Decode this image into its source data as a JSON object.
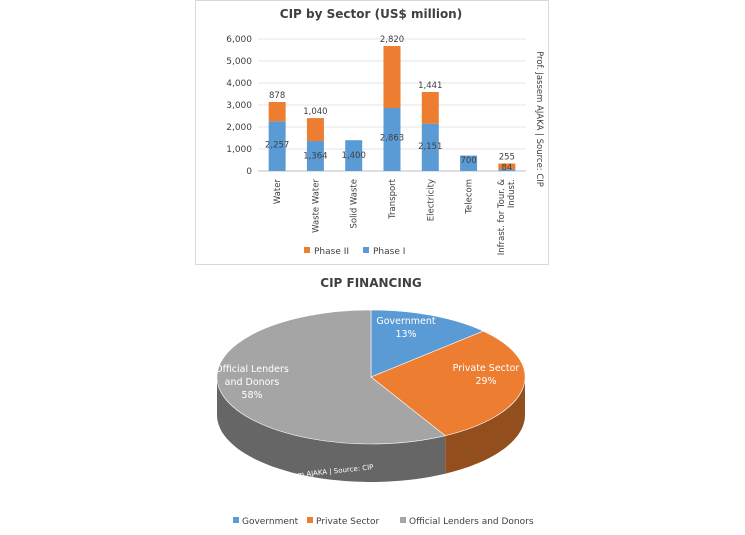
{
  "chart_data": [
    {
      "type": "bar",
      "stacked": true,
      "title": "CIP by Sector (US$ million)",
      "categories": [
        "Water",
        "Waste Water",
        "Solid Waste",
        "Transport",
        "Electricity",
        "Telecom",
        "Infrast. for Tour. & Indust."
      ],
      "series": [
        {
          "name": "Phase I",
          "color": "#5b9bd5",
          "values": [
            2257,
            1364,
            1400,
            2863,
            2151,
            700,
            84
          ],
          "labels": [
            "2,257",
            "1,364",
            "1,400",
            "2,863",
            "2,151",
            "700",
            "84"
          ]
        },
        {
          "name": "Phase II",
          "color": "#ed7d31",
          "values": [
            878,
            1040,
            0,
            2820,
            1441,
            0,
            255
          ],
          "labels": [
            "878",
            "1,040",
            "",
            "2,820",
            "1,441",
            "",
            "255"
          ]
        }
      ],
      "yticks": [
        "0",
        "1,000",
        "2,000",
        "3,000",
        "4,000",
        "5,000",
        "6,000"
      ],
      "ylim": [
        0,
        6000
      ],
      "legend_position": "bottom",
      "side_note": "Prof. Jassem AJAKA | Source: CIP"
    },
    {
      "type": "pie",
      "title": "CIP FINANCING",
      "slices": [
        {
          "name": "Government",
          "percent_label": "13%",
          "value": 13,
          "color": "#5b9bd5"
        },
        {
          "name": "Private Sector",
          "percent_label": "29%",
          "value": 29,
          "color": "#ed7d31"
        },
        {
          "name": "Official Lenders and Donors",
          "percent_label": "58%",
          "value": 58,
          "color": "#a5a5a5"
        }
      ],
      "legend_position": "bottom",
      "side_note": "Prof. Jassem AJAKA | Source: CIP"
    }
  ]
}
